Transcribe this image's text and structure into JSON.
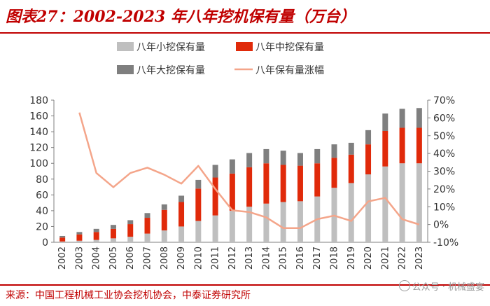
{
  "title": "图表27：2002-2023 年八年挖机保有量（万台）",
  "source": "来源：中国工程机械工业协会挖机协会，中泰证券研究所",
  "watermark": "公众号 · 机械盛宴",
  "colors": {
    "title": "#C00000",
    "small": "#BFBFBF",
    "medium": "#E02A0A",
    "large": "#7F7F7F",
    "growth": "#F4A58A",
    "axis_text": "#333333",
    "grid": "#D9D9D9"
  },
  "chart_data": {
    "type": "bar",
    "stacked": true,
    "categories": [
      "2002",
      "2003",
      "2004",
      "2005",
      "2006",
      "2007",
      "2008",
      "2009",
      "2010",
      "2011",
      "2012",
      "2013",
      "2014",
      "2015",
      "2016",
      "2017",
      "2018",
      "2019",
      "2020",
      "2021",
      "2022",
      "2023"
    ],
    "series": [
      {
        "name": "八年小挖保有量",
        "axis": "left",
        "values": [
          1,
          2,
          3,
          5,
          7,
          11,
          15,
          20,
          27,
          34,
          40,
          45,
          49,
          51,
          52,
          58,
          69,
          75,
          86,
          96,
          100,
          100
        ]
      },
      {
        "name": "八年中挖保有量",
        "axis": "left",
        "values": [
          5,
          8,
          10,
          12,
          16,
          20,
          26,
          31,
          41,
          48,
          47,
          50,
          51,
          47,
          45,
          42,
          38,
          36,
          38,
          45,
          45,
          45
        ]
      },
      {
        "name": "八年大挖保有量",
        "axis": "left",
        "values": [
          2,
          3,
          4,
          5,
          5,
          6,
          7,
          8,
          11,
          16,
          18,
          18,
          18,
          18,
          16,
          18,
          17,
          15,
          18,
          22,
          24,
          25
        ]
      },
      {
        "name": "八年保有量涨幅",
        "axis": "right",
        "type": "line",
        "values": [
          null,
          63,
          29,
          21,
          29,
          32,
          28,
          23,
          33,
          20,
          8,
          7,
          4,
          -2,
          -2,
          3,
          5,
          2,
          13,
          15,
          3,
          0
        ]
      }
    ],
    "left_axis": {
      "min": 0,
      "max": 180,
      "step": 20,
      "ticks": [
        "0",
        "20",
        "40",
        "60",
        "80",
        "100",
        "120",
        "140",
        "160",
        "180"
      ]
    },
    "right_axis": {
      "min": -10,
      "max": 70,
      "step": 10,
      "ticks": [
        "-10%",
        "0%",
        "10%",
        "20%",
        "30%",
        "40%",
        "50%",
        "60%",
        "70%"
      ]
    },
    "legend_position": "top-center"
  }
}
